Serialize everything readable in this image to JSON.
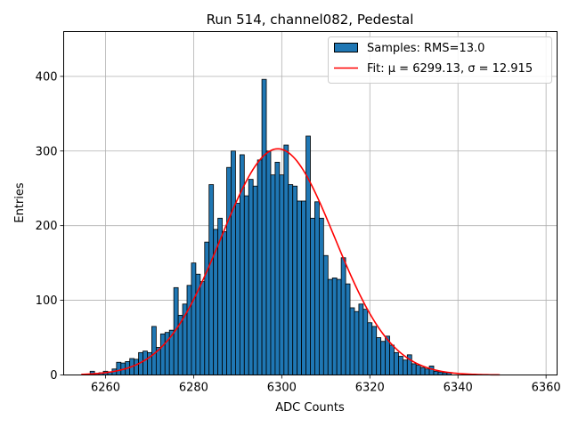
{
  "chart_data": {
    "type": "bar",
    "title": "Run 514, channel082, Pedestal",
    "xlabel": "ADC Counts",
    "ylabel": "Entries",
    "xlim": [
      6250.5,
      6362.5
    ],
    "ylim": [
      0,
      460
    ],
    "xticks": [
      6260,
      6280,
      6300,
      6320,
      6340,
      6360
    ],
    "yticks": [
      0,
      100,
      200,
      300,
      400
    ],
    "grid": true,
    "legend_position": "top-right",
    "histogram": {
      "name": "Samples: RMS=13.0",
      "color": "#1f77b4",
      "bin_start": 6257,
      "bin_width": 1,
      "counts": [
        5,
        2,
        3,
        5,
        4,
        8,
        17,
        16,
        18,
        22,
        21,
        30,
        32,
        30,
        65,
        37,
        55,
        57,
        60,
        117,
        80,
        95,
        120,
        150,
        135,
        125,
        178,
        255,
        195,
        210,
        192,
        278,
        300,
        230,
        295,
        240,
        262,
        253,
        288,
        396,
        300,
        268,
        285,
        268,
        308,
        255,
        253,
        233,
        233,
        320,
        210,
        232,
        210,
        160,
        128,
        130,
        128,
        157,
        122,
        90,
        85,
        95,
        88,
        70,
        65,
        50,
        45,
        52,
        40,
        30,
        25,
        20,
        27,
        15,
        13,
        10,
        8,
        12,
        5,
        4,
        3,
        3
      ]
    },
    "fit": {
      "name": "Fit: μ = 6299.13, σ = 12.915",
      "label_prefix": "Fit: ",
      "mu_label": "μ = 6299.13, ",
      "sigma_label": "σ = 12.915",
      "mu": 6299.13,
      "sigma": 12.915,
      "amplitude": 303,
      "x_range": [
        6254.5,
        6349.5
      ],
      "color": "#ff0000"
    }
  }
}
